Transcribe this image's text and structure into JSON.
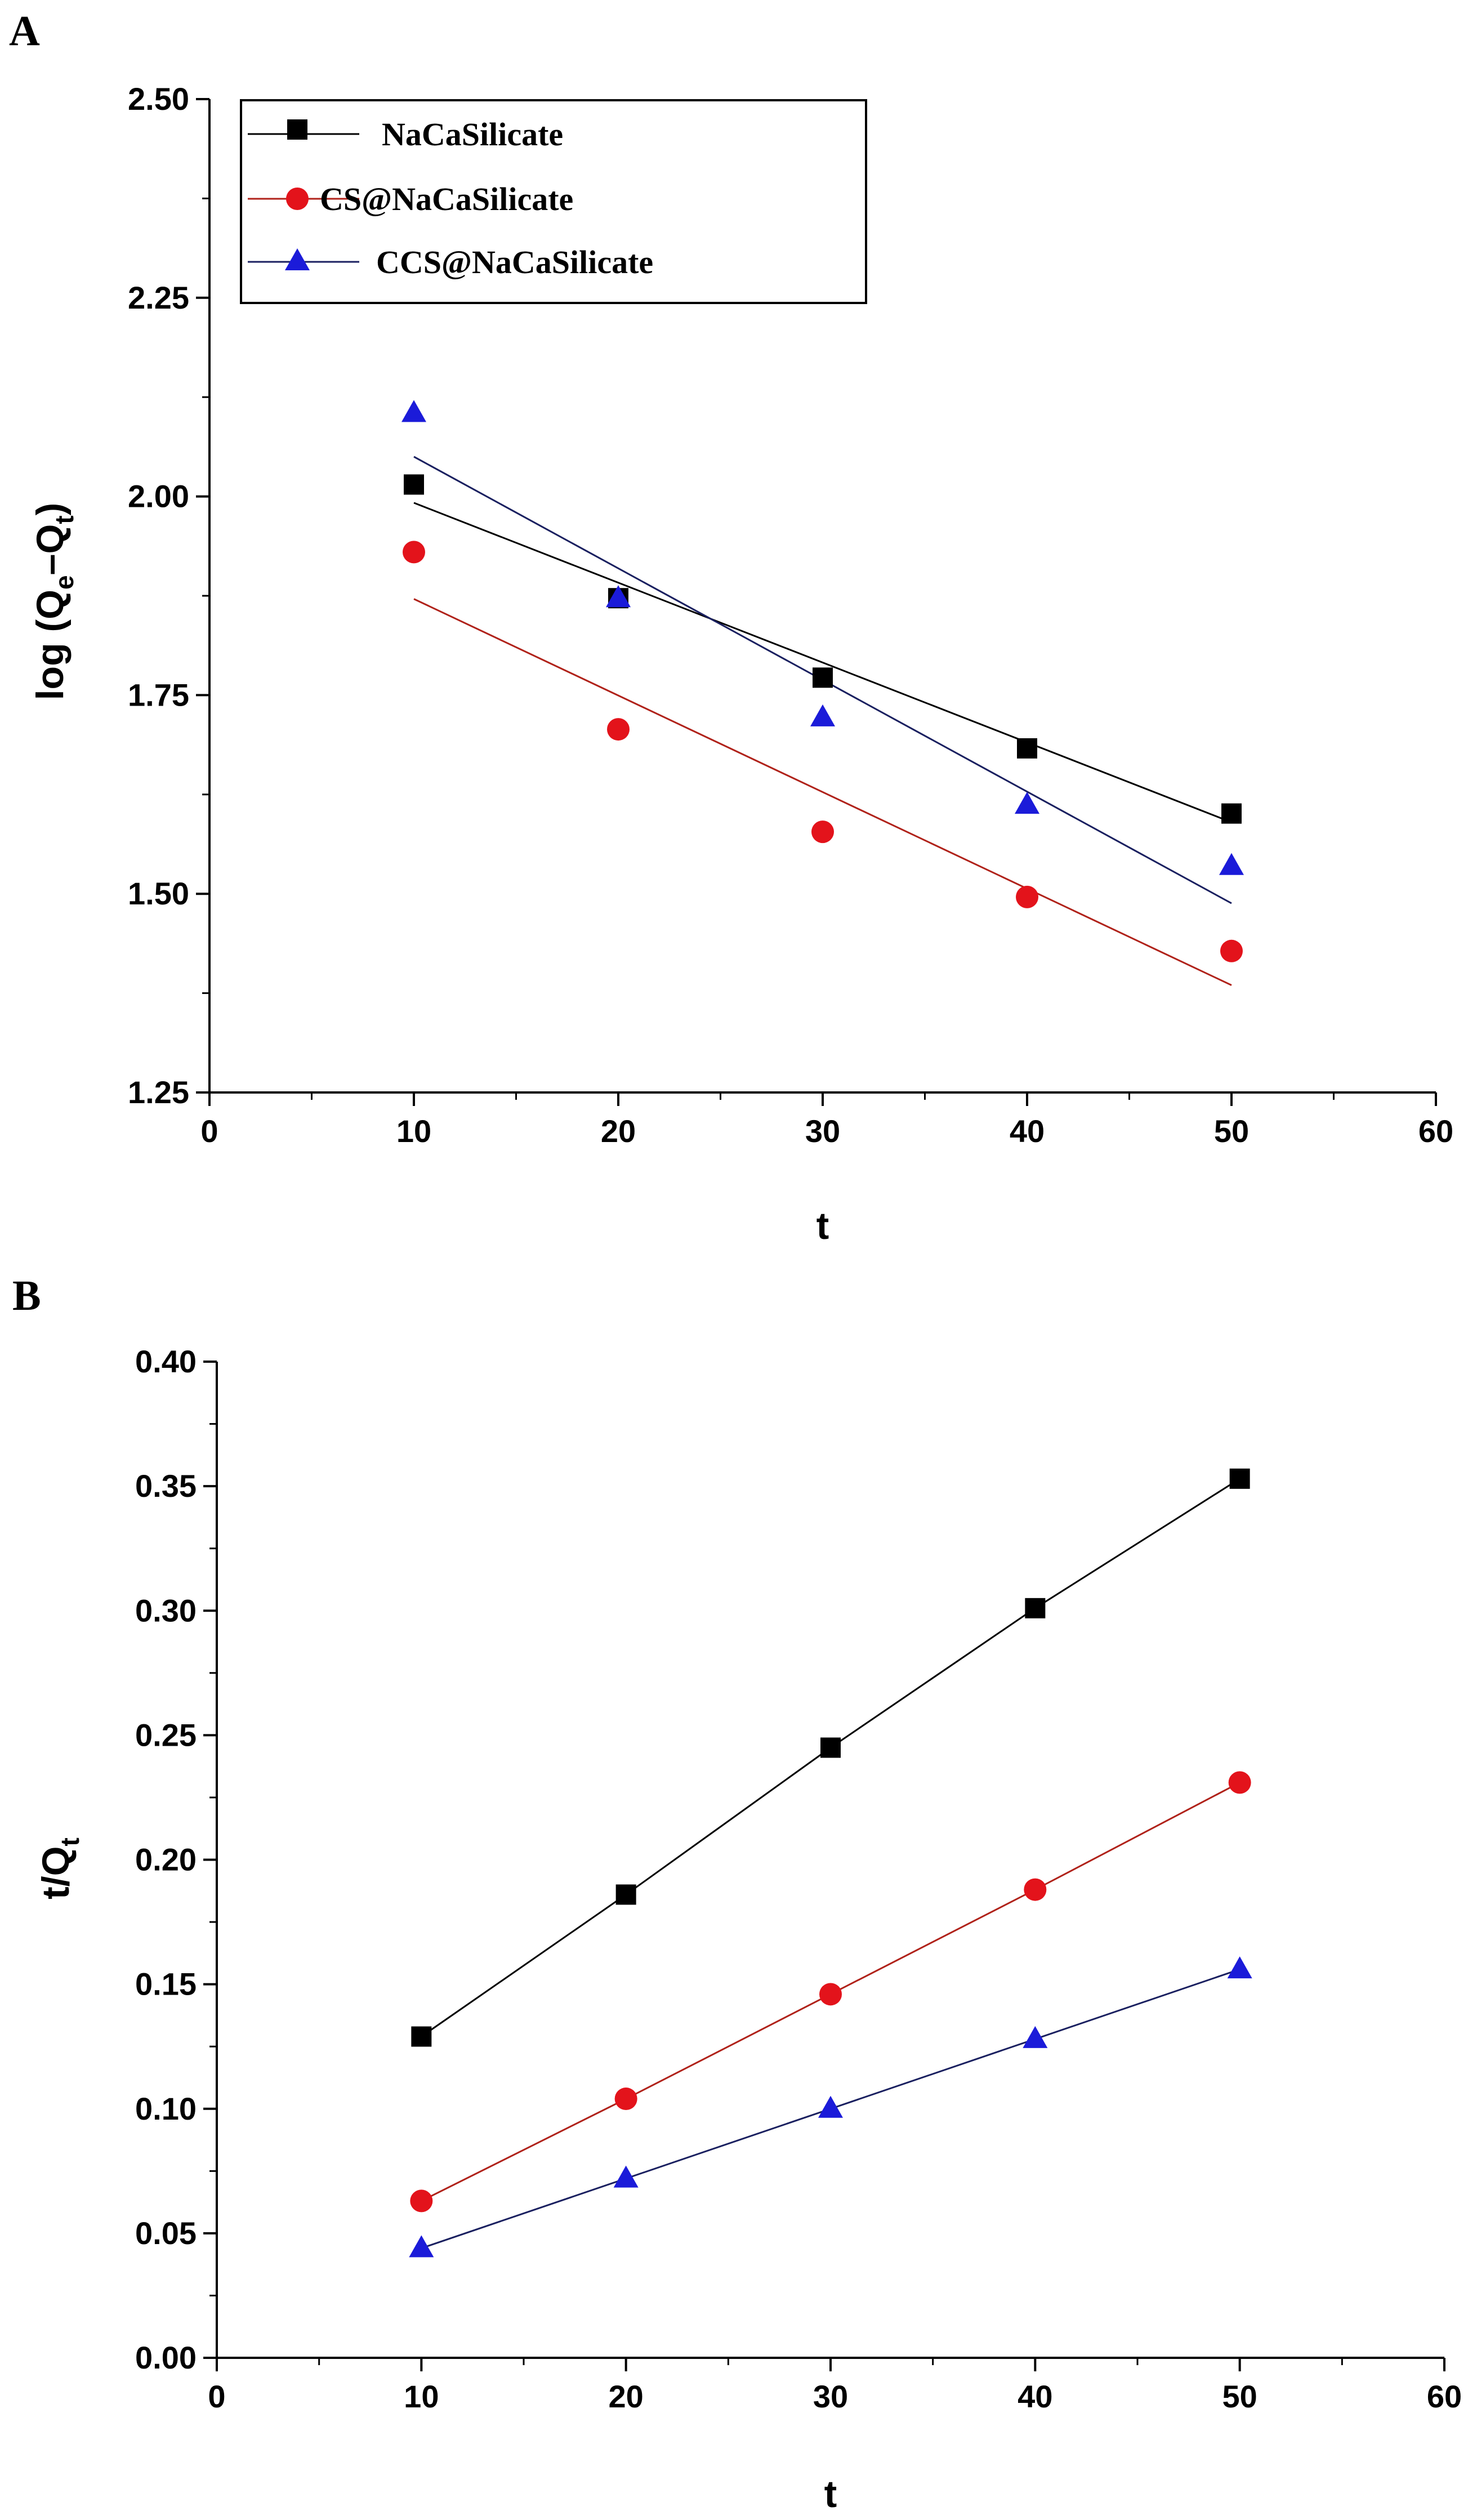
{
  "colors": {
    "series_0": "#000000",
    "series_1": "#e3131b",
    "series_2": "#1b1bd9",
    "fit_0": "#000000",
    "fit_1": "#b0221a",
    "fit_2": "#1a2060"
  },
  "legend": [
    "NaCaSilicate",
    "CS@NaCaSilicate",
    "CCS@NaCaSilicate"
  ],
  "chart_data": [
    {
      "panel_label": "A",
      "type": "scatter",
      "title": "",
      "xlabel": "t",
      "ylabel_main": "log (Q",
      "ylabel_sub1": "e",
      "ylabel_dash": "–Q",
      "ylabel_sub2": "t",
      "ylabel_close": ")",
      "xlim": [
        0,
        60
      ],
      "ylim": [
        1.25,
        2.5
      ],
      "xticks": [
        0,
        10,
        20,
        30,
        40,
        50,
        60
      ],
      "yticks": [
        1.25,
        1.5,
        1.75,
        2.0,
        2.25,
        2.5
      ],
      "xtick_labels": [
        "0",
        "10",
        "20",
        "30",
        "40",
        "50",
        "60"
      ],
      "ytick_labels": [
        "1.25",
        "1.50",
        "1.75",
        "2.00",
        "2.25",
        "2.50"
      ],
      "legend_position": "top-left",
      "series": [
        {
          "name": "NaCaSilicate",
          "marker": "square",
          "x": [
            10,
            20,
            30,
            40,
            50
          ],
          "y": [
            2.015,
            1.872,
            1.772,
            1.683,
            1.601
          ],
          "fit": [
            [
              10,
              1.992
            ],
            [
              50,
              1.59
            ]
          ]
        },
        {
          "name": "CS@NaCaSilicate",
          "marker": "circle",
          "x": [
            10,
            20,
            30,
            40,
            50
          ],
          "y": [
            1.93,
            1.707,
            1.578,
            1.496,
            1.428
          ],
          "fit": [
            [
              10,
              1.871
            ],
            [
              50,
              1.385
            ]
          ]
        },
        {
          "name": "CCS@NaCaSilicate",
          "marker": "triangle",
          "x": [
            10,
            20,
            30,
            40,
            50
          ],
          "y": [
            2.105,
            1.872,
            1.722,
            1.612,
            1.535
          ],
          "fit": [
            [
              10,
              2.05
            ],
            [
              50,
              1.488
            ]
          ]
        }
      ]
    },
    {
      "panel_label": "B",
      "type": "scatter",
      "title": "",
      "xlabel": "t",
      "ylabel_main": "t/Q",
      "ylabel_sub1": "t",
      "xlim": [
        0,
        60
      ],
      "ylim": [
        0.0,
        0.4
      ],
      "xticks": [
        0,
        10,
        20,
        30,
        40,
        50,
        60
      ],
      "yticks": [
        0.0,
        0.05,
        0.1,
        0.15,
        0.2,
        0.25,
        0.3,
        0.35,
        0.4
      ],
      "xtick_labels": [
        "0",
        "10",
        "20",
        "30",
        "40",
        "50",
        "60"
      ],
      "ytick_labels": [
        "0.00",
        "0.05",
        "0.10",
        "0.15",
        "0.20",
        "0.25",
        "0.30",
        "0.35",
        "0.40"
      ],
      "series": [
        {
          "name": "NaCaSilicate",
          "marker": "square",
          "x": [
            10,
            20,
            30,
            40,
            50
          ],
          "y": [
            0.129,
            0.186,
            0.245,
            0.301,
            0.353
          ],
          "fit": [
            [
              10,
              0.129
            ],
            [
              20,
              0.186
            ],
            [
              30,
              0.245
            ],
            [
              40,
              0.301
            ],
            [
              50,
              0.353
            ]
          ]
        },
        {
          "name": "CS@NaCaSilicate",
          "marker": "circle",
          "x": [
            10,
            20,
            30,
            40,
            50
          ],
          "y": [
            0.063,
            0.104,
            0.146,
            0.188,
            0.231
          ],
          "fit": [
            [
              10,
              0.063
            ],
            [
              20,
              0.104
            ],
            [
              30,
              0.146
            ],
            [
              40,
              0.188
            ],
            [
              50,
              0.231
            ]
          ]
        },
        {
          "name": "CCS@NaCaSilicate",
          "marker": "triangle",
          "x": [
            10,
            20,
            30,
            40,
            50
          ],
          "y": [
            0.044,
            0.072,
            0.1,
            0.128,
            0.156
          ],
          "fit": [
            [
              10,
              0.044
            ],
            [
              20,
              0.072
            ],
            [
              30,
              0.1
            ],
            [
              40,
              0.128
            ],
            [
              50,
              0.156
            ]
          ]
        }
      ]
    }
  ]
}
